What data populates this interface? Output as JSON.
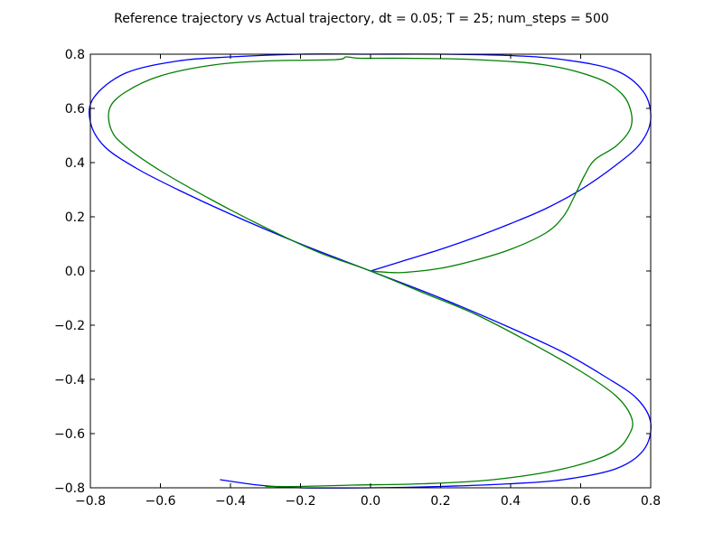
{
  "chart_data": {
    "type": "line",
    "title": "Reference trajectory vs Actual trajectory, dt = 0.05; T = 25; num_steps = 500",
    "xlabel": "",
    "ylabel": "",
    "xlim": [
      -0.8,
      0.8
    ],
    "ylim": [
      -0.8,
      0.8
    ],
    "x_ticks": [
      -0.8,
      -0.6,
      -0.4,
      -0.2,
      0.0,
      0.2,
      0.4,
      0.6,
      0.8
    ],
    "y_ticks": [
      -0.8,
      -0.6,
      -0.4,
      -0.2,
      0.0,
      0.2,
      0.4,
      0.6,
      0.8
    ],
    "x_tick_labels": [
      "−0.8",
      "−0.6",
      "−0.4",
      "−0.2",
      "0.0",
      "0.2",
      "0.4",
      "0.6",
      "0.8"
    ],
    "y_tick_labels": [
      "−0.8",
      "−0.6",
      "−0.4",
      "−0.2",
      "0.0",
      "0.2",
      "0.4",
      "0.6",
      "0.8"
    ],
    "grid": false,
    "legend": false,
    "series": [
      {
        "color": "#0000ff",
        "points": [
          [
            0.0,
            0.0
          ],
          [
            0.1,
            0.04
          ],
          [
            0.2,
            0.08
          ],
          [
            0.3,
            0.125
          ],
          [
            0.4,
            0.175
          ],
          [
            0.5,
            0.23
          ],
          [
            0.6,
            0.3
          ],
          [
            0.7,
            0.39
          ],
          [
            0.77,
            0.47
          ],
          [
            0.8,
            0.56
          ],
          [
            0.78,
            0.66
          ],
          [
            0.7,
            0.74
          ],
          [
            0.55,
            0.78
          ],
          [
            0.4,
            0.795
          ],
          [
            0.2,
            0.8
          ],
          [
            0.0,
            0.8
          ],
          [
            -0.2,
            0.8
          ],
          [
            -0.4,
            0.79
          ],
          [
            -0.55,
            0.775
          ],
          [
            -0.7,
            0.73
          ],
          [
            -0.79,
            0.64
          ],
          [
            -0.8,
            0.55
          ],
          [
            -0.76,
            0.46
          ],
          [
            -0.67,
            0.38
          ],
          [
            -0.55,
            0.3
          ],
          [
            -0.4,
            0.21
          ],
          [
            -0.2,
            0.1
          ],
          [
            0.0,
            0.0
          ],
          [
            0.2,
            -0.1
          ],
          [
            0.4,
            -0.21
          ],
          [
            0.55,
            -0.3
          ],
          [
            0.67,
            -0.39
          ],
          [
            0.76,
            -0.47
          ],
          [
            0.8,
            -0.56
          ],
          [
            0.78,
            -0.66
          ],
          [
            0.7,
            -0.73
          ],
          [
            0.55,
            -0.77
          ],
          [
            0.4,
            -0.785
          ],
          [
            0.2,
            -0.795
          ],
          [
            0.0,
            -0.8
          ],
          [
            -0.2,
            -0.8
          ],
          [
            -0.32,
            -0.79
          ],
          [
            -0.43,
            -0.77
          ]
        ]
      },
      {
        "color": "#008000",
        "points": [
          [
            0.0,
            0.0
          ],
          [
            0.05,
            -0.005
          ],
          [
            0.1,
            -0.005
          ],
          [
            0.2,
            0.01
          ],
          [
            0.3,
            0.04
          ],
          [
            0.4,
            0.08
          ],
          [
            0.5,
            0.14
          ],
          [
            0.55,
            0.2
          ],
          [
            0.58,
            0.27
          ],
          [
            0.61,
            0.35
          ],
          [
            0.64,
            0.41
          ],
          [
            0.7,
            0.46
          ],
          [
            0.74,
            0.52
          ],
          [
            0.745,
            0.58
          ],
          [
            0.72,
            0.65
          ],
          [
            0.65,
            0.71
          ],
          [
            0.5,
            0.76
          ],
          [
            0.3,
            0.78
          ],
          [
            0.1,
            0.785
          ],
          [
            -0.03,
            0.785
          ],
          [
            -0.07,
            0.79
          ],
          [
            -0.1,
            0.78
          ],
          [
            -0.3,
            0.775
          ],
          [
            -0.45,
            0.76
          ],
          [
            -0.6,
            0.72
          ],
          [
            -0.7,
            0.66
          ],
          [
            -0.745,
            0.6
          ],
          [
            -0.74,
            0.52
          ],
          [
            -0.7,
            0.46
          ],
          [
            -0.6,
            0.37
          ],
          [
            -0.45,
            0.26
          ],
          [
            -0.3,
            0.16
          ],
          [
            -0.15,
            0.07
          ],
          [
            0.0,
            0.0
          ],
          [
            0.15,
            -0.08
          ],
          [
            0.3,
            -0.16
          ],
          [
            0.45,
            -0.26
          ],
          [
            0.6,
            -0.37
          ],
          [
            0.7,
            -0.46
          ],
          [
            0.745,
            -0.54
          ],
          [
            0.74,
            -0.6
          ],
          [
            0.69,
            -0.67
          ],
          [
            0.55,
            -0.73
          ],
          [
            0.35,
            -0.77
          ],
          [
            0.15,
            -0.785
          ],
          [
            -0.05,
            -0.79
          ],
          [
            -0.2,
            -0.795
          ],
          [
            -0.3,
            -0.795
          ]
        ]
      }
    ]
  }
}
